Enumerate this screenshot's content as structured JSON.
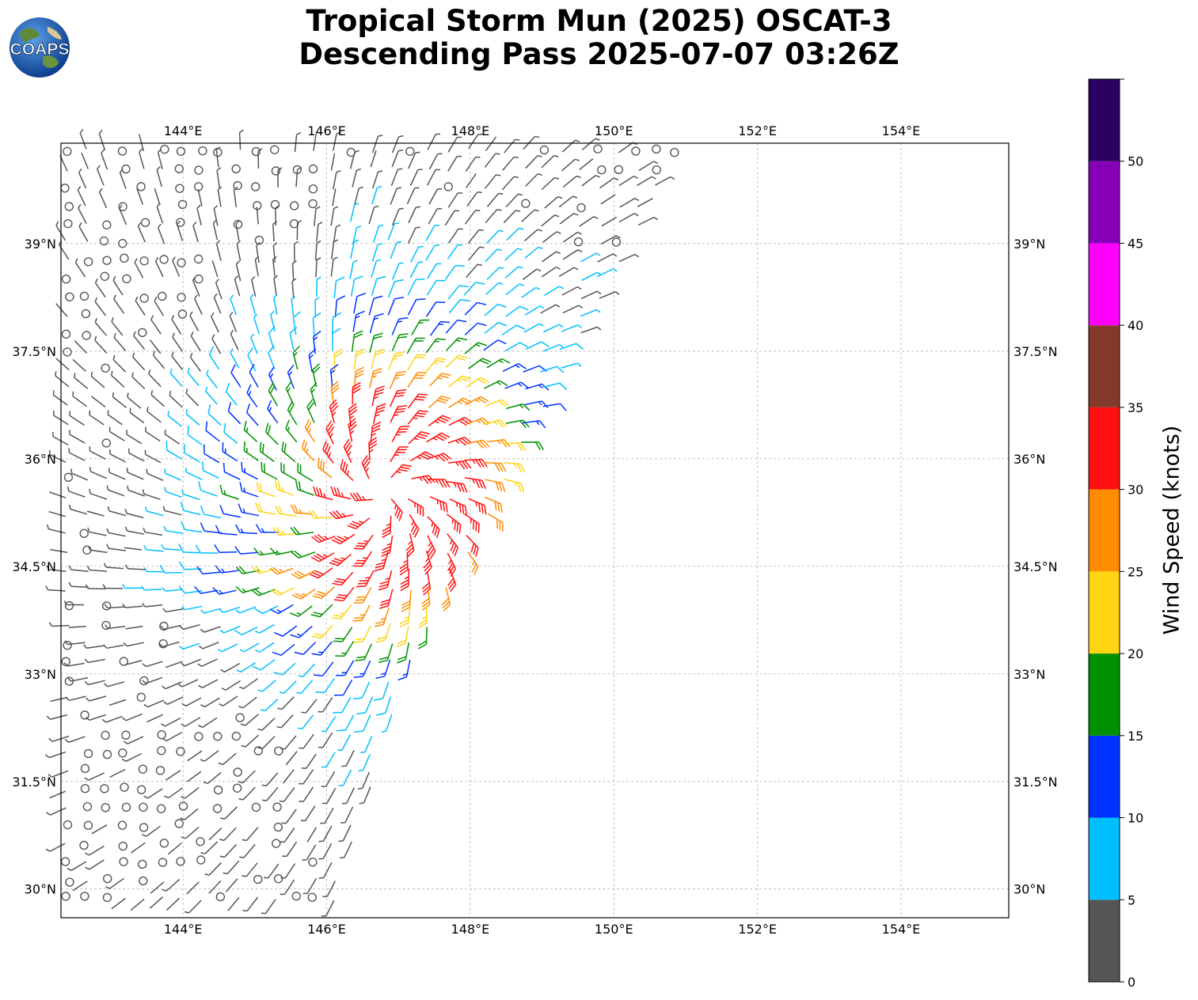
{
  "title": {
    "line1": "Tropical Storm Mun (2025) OSCAT-3",
    "line2": "Descending Pass 2025-07-07 03:26Z"
  },
  "logo": {
    "text": "COAPS",
    "icon": "globe-logo"
  },
  "map": {
    "lon_range": [
      142.3,
      155.5
    ],
    "lat_range": [
      29.6,
      40.4
    ],
    "lon_ticks": [
      "144°E",
      "146°E",
      "148°E",
      "150°E",
      "152°E",
      "154°E"
    ],
    "lon_tick_values": [
      144,
      146,
      148,
      150,
      152,
      154
    ],
    "lat_ticks": [
      "30°N",
      "31.5°N",
      "33°N",
      "34.5°N",
      "36°N",
      "37.5°N",
      "39°N"
    ],
    "lat_tick_values": [
      30,
      31.5,
      33,
      34.5,
      36,
      37.5,
      39
    ],
    "grid": true,
    "storm_center_approx": [
      146.8,
      35.5
    ]
  },
  "colorbar": {
    "label": "Wind Speed (knots)",
    "ticks": [
      "0",
      "5",
      "10",
      "15",
      "20",
      "25",
      "30",
      "35",
      "40",
      "45",
      "50"
    ],
    "bins": [
      {
        "min": 0,
        "max": 5,
        "color": "#555555"
      },
      {
        "min": 5,
        "max": 10,
        "color": "#00bfff"
      },
      {
        "min": 10,
        "max": 15,
        "color": "#0033ff"
      },
      {
        "min": 15,
        "max": 20,
        "color": "#009100"
      },
      {
        "min": 20,
        "max": 25,
        "color": "#ffd413"
      },
      {
        "min": 25,
        "max": 30,
        "color": "#ff8c00"
      },
      {
        "min": 30,
        "max": 35,
        "color": "#ff1010"
      },
      {
        "min": 35,
        "max": 40,
        "color": "#833a2a"
      },
      {
        "min": 40,
        "max": 45,
        "color": "#ff00ff"
      },
      {
        "min": 45,
        "max": 50,
        "color": "#8600b7"
      },
      {
        "min": 50,
        "max": 55,
        "color": "#2a0060"
      }
    ]
  }
}
